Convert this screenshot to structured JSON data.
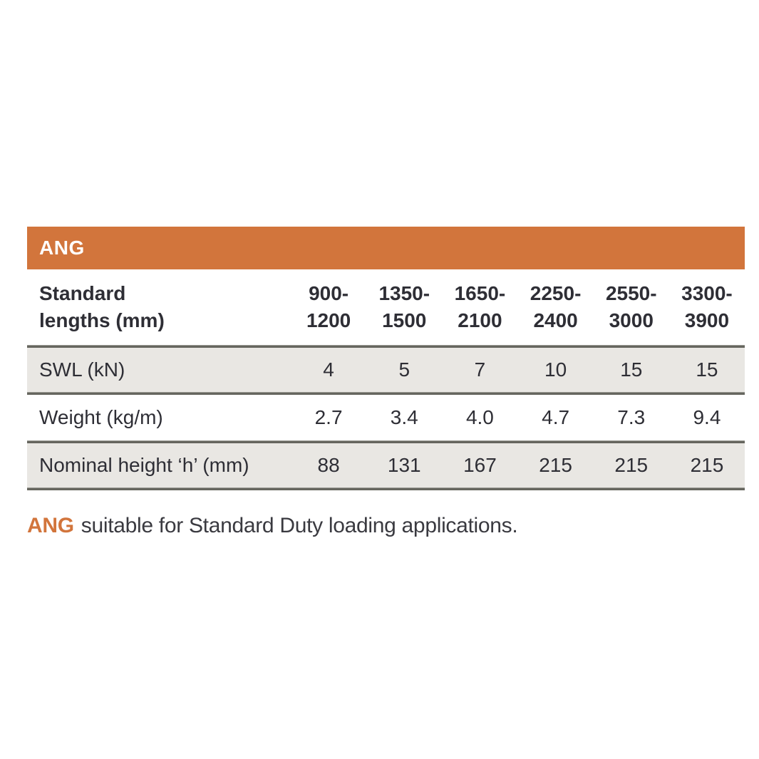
{
  "colors": {
    "accent": "#d2753c",
    "row_shade": "#e9e7e3",
    "rule": "#66665f",
    "text": "#2e2e35"
  },
  "table": {
    "title": "ANG",
    "corner_label": "Standard\nlengths (mm)",
    "columns": [
      "900-\n1200",
      "1350-\n1500",
      "1650-\n2100",
      "2250-\n2400",
      "2550-\n3000",
      "3300-\n3900"
    ],
    "rows": [
      {
        "label": "SWL (kN)",
        "values": [
          "4",
          "5",
          "7",
          "10",
          "15",
          "15"
        ]
      },
      {
        "label": "Weight (kg/m)",
        "values": [
          "2.7",
          "3.4",
          "4.0",
          "4.7",
          "7.3",
          "9.4"
        ]
      },
      {
        "label": "Nominal height ‘h’ (mm)",
        "values": [
          "88",
          "131",
          "167",
          "215",
          "215",
          "215"
        ]
      }
    ]
  },
  "footnote": {
    "brand": "ANG",
    "text": "suitable for Standard Duty loading applications."
  }
}
